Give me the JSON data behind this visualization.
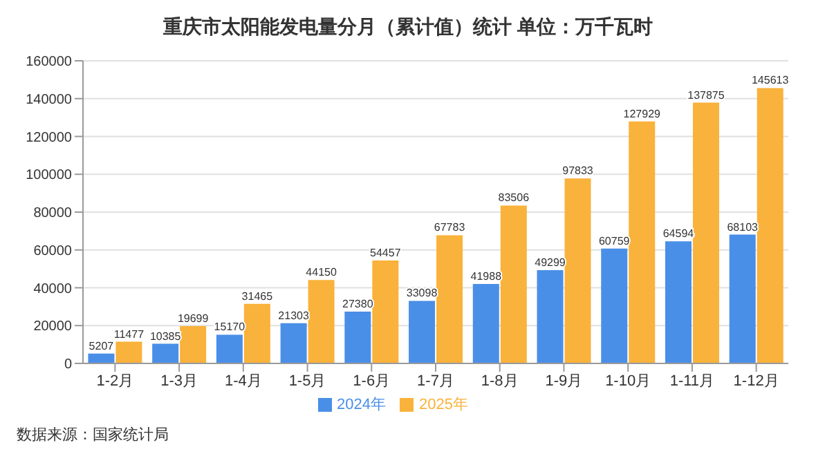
{
  "chart_data": {
    "type": "bar",
    "title": "重庆市太阳能发电量分月（累计值）统计  单位：万千瓦时",
    "categories": [
      "1-2月",
      "1-3月",
      "1-4月",
      "1-5月",
      "1-6月",
      "1-7月",
      "1-8月",
      "1-9月",
      "1-10月",
      "1-11月",
      "1-12月"
    ],
    "series": [
      {
        "name": "2024年",
        "color": "#4a8fe7",
        "values": [
          5207,
          10385,
          15170,
          21303,
          27380,
          33098,
          41988,
          49299,
          60759,
          64594,
          68103
        ]
      },
      {
        "name": "2025年",
        "color": "#f9b23b",
        "values": [
          11477,
          19699,
          31465,
          44150,
          54457,
          67783,
          83506,
          97833,
          127929,
          137875,
          145613
        ]
      }
    ],
    "ylim": [
      0,
      160000
    ],
    "yticks": [
      0,
      20000,
      40000,
      60000,
      80000,
      100000,
      120000,
      140000,
      160000
    ],
    "grid": "y",
    "legend": "bottom",
    "data_labels": true,
    "annotations": [
      "数据来源：国家统计局"
    ]
  }
}
